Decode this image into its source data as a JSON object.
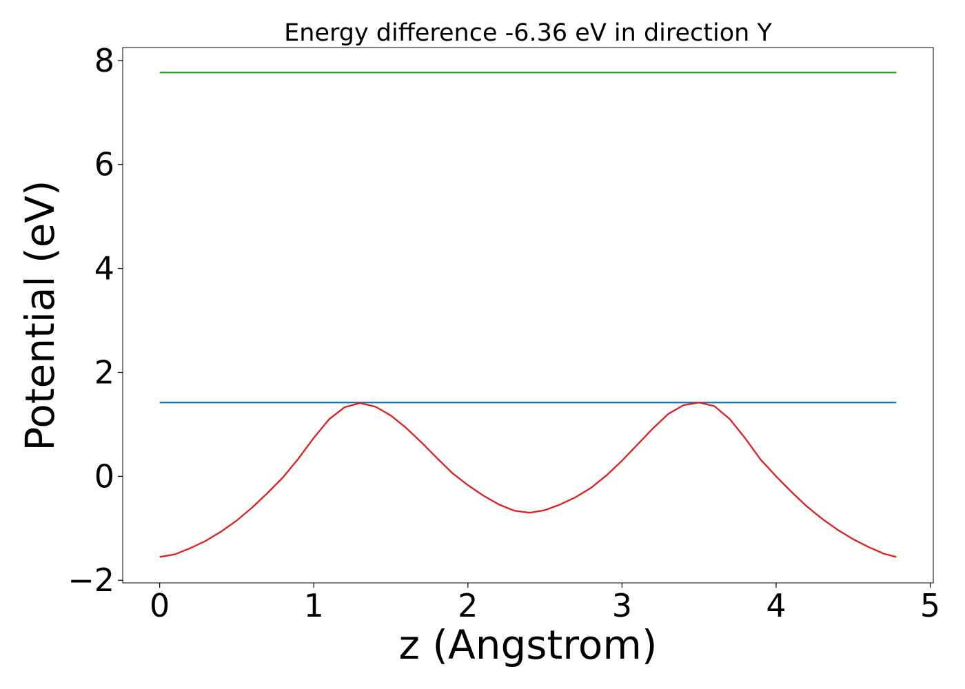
{
  "chart_data": {
    "type": "line",
    "title": "Energy difference -6.36 eV in direction Y",
    "xlabel": "z (Angstrom)",
    "ylabel": "Potential (eV)",
    "xlim": [
      -0.24,
      5.02
    ],
    "ylim": [
      -2.05,
      8.25
    ],
    "xticks": [
      0,
      1,
      2,
      3,
      4,
      5
    ],
    "yticks": [
      -2,
      0,
      2,
      4,
      6,
      8
    ],
    "xtick_labels": [
      "0",
      "1",
      "2",
      "3",
      "4",
      "5"
    ],
    "ytick_labels": [
      "−2",
      "0",
      "2",
      "4",
      "6",
      "8"
    ],
    "grid": false,
    "legend": "none",
    "series": [
      {
        "color": "#2ca02c",
        "x": [
          0,
          4.78
        ],
        "y": [
          7.77,
          7.77
        ]
      },
      {
        "color": "#1f77b4",
        "x": [
          0,
          4.78
        ],
        "y": [
          1.42,
          1.42
        ]
      },
      {
        "color": "#d62728",
        "x": [
          0,
          0.1,
          0.2,
          0.3,
          0.4,
          0.5,
          0.6,
          0.7,
          0.8,
          0.9,
          1.0,
          1.1,
          1.2,
          1.3,
          1.4,
          1.5,
          1.6,
          1.7,
          1.8,
          1.9,
          2.0,
          2.1,
          2.2,
          2.3,
          2.4,
          2.5,
          2.6,
          2.7,
          2.8,
          2.9,
          3.0,
          3.1,
          3.2,
          3.3,
          3.4,
          3.5,
          3.6,
          3.7,
          3.8,
          3.9,
          4.0,
          4.1,
          4.2,
          4.3,
          4.4,
          4.5,
          4.6,
          4.7,
          4.78
        ],
        "y": [
          -1.55,
          -1.5,
          -1.38,
          -1.24,
          -1.06,
          -0.85,
          -0.6,
          -0.32,
          -0.02,
          0.34,
          0.74,
          1.1,
          1.33,
          1.41,
          1.34,
          1.17,
          0.93,
          0.65,
          0.35,
          0.06,
          -0.17,
          -0.37,
          -0.54,
          -0.66,
          -0.7,
          -0.65,
          -0.54,
          -0.4,
          -0.22,
          0.02,
          0.3,
          0.61,
          0.92,
          1.2,
          1.37,
          1.42,
          1.35,
          1.1,
          0.73,
          0.32,
          0.0,
          -0.3,
          -0.58,
          -0.82,
          -1.03,
          -1.21,
          -1.36,
          -1.49,
          -1.55
        ]
      }
    ]
  }
}
